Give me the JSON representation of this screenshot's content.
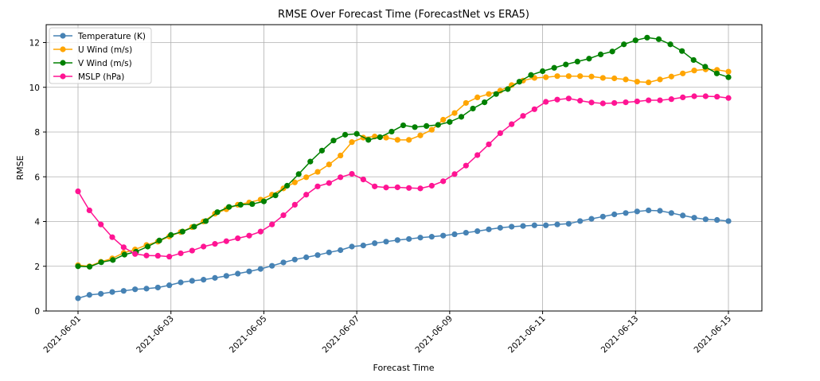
{
  "chart_data": {
    "type": "line",
    "title": "RMSE Over Forecast Time (ForecastNet vs ERA5)",
    "xlabel": "Forecast Time",
    "ylabel": "RMSE",
    "x_start": "2021-06-01",
    "x_end": "2021-06-15",
    "x_ticks": [
      "2021-06-01",
      "2021-06-03",
      "2021-06-05",
      "2021-06-07",
      "2021-06-09",
      "2021-06-11",
      "2021-06-13",
      "2021-06-15"
    ],
    "y_ticks": [
      0,
      2,
      4,
      6,
      8,
      10,
      12
    ],
    "ylim": [
      0,
      12.8
    ],
    "grid": true,
    "legend_position": "upper-left",
    "series": [
      {
        "name": "Temperature (K)",
        "color": "#4682b4",
        "values": [
          0.57,
          0.72,
          0.77,
          0.85,
          0.9,
          0.97,
          1.0,
          1.05,
          1.15,
          1.28,
          1.35,
          1.4,
          1.48,
          1.57,
          1.67,
          1.77,
          1.88,
          2.02,
          2.17,
          2.3,
          2.4,
          2.5,
          2.62,
          2.72,
          2.88,
          2.93,
          3.03,
          3.1,
          3.17,
          3.22,
          3.28,
          3.32,
          3.37,
          3.43,
          3.5,
          3.57,
          3.65,
          3.72,
          3.77,
          3.8,
          3.83,
          3.83,
          3.87,
          3.9,
          4.02,
          4.12,
          4.22,
          4.32,
          4.38,
          4.45,
          4.5,
          4.48,
          4.38,
          4.27,
          4.17,
          4.1,
          4.07,
          4.02
        ]
      },
      {
        "name": "U Wind (m/s)",
        "color": "#ffa500",
        "values": [
          2.05,
          2.0,
          2.2,
          2.35,
          2.6,
          2.75,
          2.95,
          3.1,
          3.33,
          3.53,
          3.75,
          4.0,
          4.35,
          4.55,
          4.75,
          4.85,
          4.98,
          5.2,
          5.48,
          5.75,
          5.98,
          6.22,
          6.55,
          6.95,
          7.55,
          7.75,
          7.8,
          7.75,
          7.65,
          7.65,
          7.85,
          8.1,
          8.55,
          8.85,
          9.3,
          9.55,
          9.7,
          9.85,
          10.1,
          10.3,
          10.42,
          10.45,
          10.5,
          10.5,
          10.5,
          10.48,
          10.42,
          10.4,
          10.35,
          10.25,
          10.22,
          10.35,
          10.48,
          10.62,
          10.75,
          10.8,
          10.78,
          10.7
        ]
      },
      {
        "name": "V Wind (m/s)",
        "color": "#008000",
        "values": [
          2.0,
          1.98,
          2.18,
          2.28,
          2.52,
          2.65,
          2.88,
          3.15,
          3.4,
          3.55,
          3.77,
          4.02,
          4.42,
          4.65,
          4.75,
          4.78,
          4.9,
          5.17,
          5.6,
          6.12,
          6.68,
          7.17,
          7.62,
          7.88,
          7.92,
          7.65,
          7.77,
          8.02,
          8.3,
          8.22,
          8.27,
          8.32,
          8.45,
          8.68,
          9.05,
          9.33,
          9.7,
          9.92,
          10.25,
          10.55,
          10.72,
          10.87,
          11.02,
          11.15,
          11.28,
          11.47,
          11.6,
          11.92,
          12.1,
          12.22,
          12.15,
          11.92,
          11.62,
          11.22,
          10.92,
          10.62,
          10.45
        ]
      },
      {
        "name": "MSLP (hPa)",
        "color": "#ff1493",
        "values": [
          5.35,
          4.5,
          3.87,
          3.3,
          2.85,
          2.55,
          2.48,
          2.47,
          2.43,
          2.58,
          2.7,
          2.88,
          3.0,
          3.12,
          3.25,
          3.37,
          3.55,
          3.87,
          4.28,
          4.75,
          5.2,
          5.57,
          5.72,
          5.98,
          6.13,
          5.88,
          5.57,
          5.52,
          5.53,
          5.5,
          5.48,
          5.6,
          5.8,
          6.12,
          6.5,
          6.97,
          7.45,
          7.95,
          8.35,
          8.72,
          9.02,
          9.35,
          9.45,
          9.5,
          9.4,
          9.32,
          9.28,
          9.3,
          9.33,
          9.37,
          9.42,
          9.42,
          9.47,
          9.55,
          9.6,
          9.6,
          9.58,
          9.52
        ]
      }
    ]
  }
}
